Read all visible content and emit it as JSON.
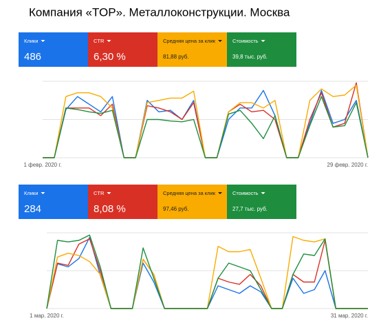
{
  "title": "Компания «TOP». Металлоконструкции. Москва",
  "chart_data": [
    {
      "type": "line",
      "categories": [
        "1 февр. 2020 г.",
        null,
        null,
        null,
        null,
        null,
        null,
        null,
        null,
        null,
        null,
        null,
        null,
        null,
        null,
        null,
        null,
        null,
        null,
        null,
        null,
        null,
        null,
        null,
        null,
        null,
        null,
        null,
        "29 февр. 2020 г."
      ],
      "ylim": [
        0,
        100
      ],
      "grid": true,
      "series": [
        {
          "name": "Клики",
          "summary": "486",
          "color": "#1a73e8",
          "values": [
            0,
            0,
            63,
            80,
            70,
            60,
            80,
            0,
            0,
            75,
            60,
            62,
            50,
            75,
            0,
            0,
            50,
            65,
            65,
            88,
            55,
            0,
            0,
            45,
            88,
            45,
            50,
            75,
            0
          ]
        },
        {
          "name": "CTR",
          "summary": "6,30 %",
          "color": "#d93025",
          "values": [
            0,
            0,
            65,
            65,
            65,
            55,
            70,
            0,
            0,
            68,
            65,
            60,
            50,
            72,
            0,
            0,
            60,
            70,
            60,
            62,
            50,
            0,
            0,
            50,
            85,
            40,
            45,
            98,
            0
          ]
        },
        {
          "name": "Средняя цена за клик",
          "summary": "81,88 руб.",
          "color": "#f9ab00",
          "values": [
            0,
            0,
            80,
            85,
            85,
            80,
            65,
            0,
            0,
            72,
            75,
            78,
            78,
            87,
            0,
            0,
            60,
            72,
            72,
            65,
            75,
            0,
            0,
            75,
            90,
            80,
            82,
            95,
            0
          ]
        },
        {
          "name": "Стоимость",
          "summary": "39,8 тыс. руб.",
          "color": "#1e8e3e",
          "values": [
            0,
            0,
            65,
            63,
            60,
            58,
            62,
            0,
            0,
            50,
            50,
            48,
            47,
            50,
            0,
            0,
            57,
            62,
            45,
            25,
            55,
            0,
            0,
            42,
            80,
            40,
            42,
            72,
            0
          ]
        }
      ]
    },
    {
      "type": "line",
      "categories": [
        "1 мар. 2020 г.",
        null,
        null,
        null,
        null,
        null,
        null,
        null,
        null,
        null,
        null,
        null,
        null,
        null,
        null,
        null,
        null,
        null,
        null,
        null,
        null,
        null,
        null,
        null,
        null,
        null,
        null,
        null,
        null,
        null,
        "31 мар. 2020 г."
      ],
      "ylim": [
        0,
        100
      ],
      "grid": true,
      "series": [
        {
          "name": "Клики",
          "summary": "284",
          "color": "#1a73e8",
          "values": [
            0,
            59,
            55,
            66,
            94,
            44,
            0,
            0,
            0,
            60,
            35,
            0,
            0,
            0,
            0,
            0,
            30,
            25,
            20,
            30,
            22,
            0,
            0,
            40,
            20,
            25,
            50,
            0,
            0,
            0,
            0
          ]
        },
        {
          "name": "CTR",
          "summary": "8,08 %",
          "color": "#d93025",
          "values": [
            0,
            60,
            57,
            85,
            92,
            50,
            0,
            0,
            0,
            65,
            45,
            0,
            0,
            0,
            0,
            0,
            40,
            35,
            32,
            45,
            30,
            0,
            0,
            45,
            35,
            35,
            90,
            0,
            0,
            0,
            0
          ]
        },
        {
          "name": "Средняя цена за клик",
          "summary": "97,46 руб.",
          "color": "#f9ab00",
          "values": [
            0,
            68,
            73,
            70,
            62,
            45,
            0,
            0,
            0,
            65,
            45,
            0,
            0,
            0,
            0,
            0,
            82,
            75,
            75,
            78,
            40,
            0,
            0,
            95,
            90,
            88,
            92,
            0,
            0,
            0,
            0
          ]
        },
        {
          "name": "Стоимость",
          "summary": "27,7 тыс. руб.",
          "color": "#1e8e3e",
          "values": [
            0,
            90,
            88,
            90,
            97,
            55,
            0,
            0,
            0,
            80,
            40,
            0,
            0,
            0,
            0,
            0,
            40,
            60,
            55,
            50,
            25,
            0,
            0,
            45,
            72,
            70,
            92,
            0,
            0,
            0,
            0
          ]
        }
      ]
    }
  ]
}
